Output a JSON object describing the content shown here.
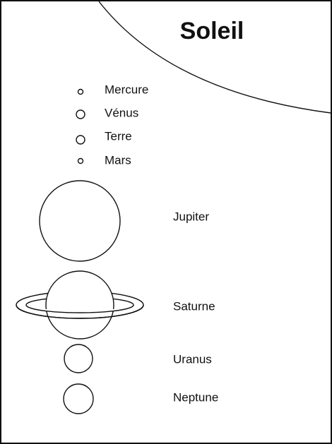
{
  "title": "Soleil",
  "planets": [
    {
      "label": "Mercure"
    },
    {
      "label": "Vénus"
    },
    {
      "label": "Terre"
    },
    {
      "label": "Mars"
    },
    {
      "label": "Jupiter"
    },
    {
      "label": "Saturne"
    },
    {
      "label": "Uranus"
    },
    {
      "label": "Neptune"
    }
  ]
}
